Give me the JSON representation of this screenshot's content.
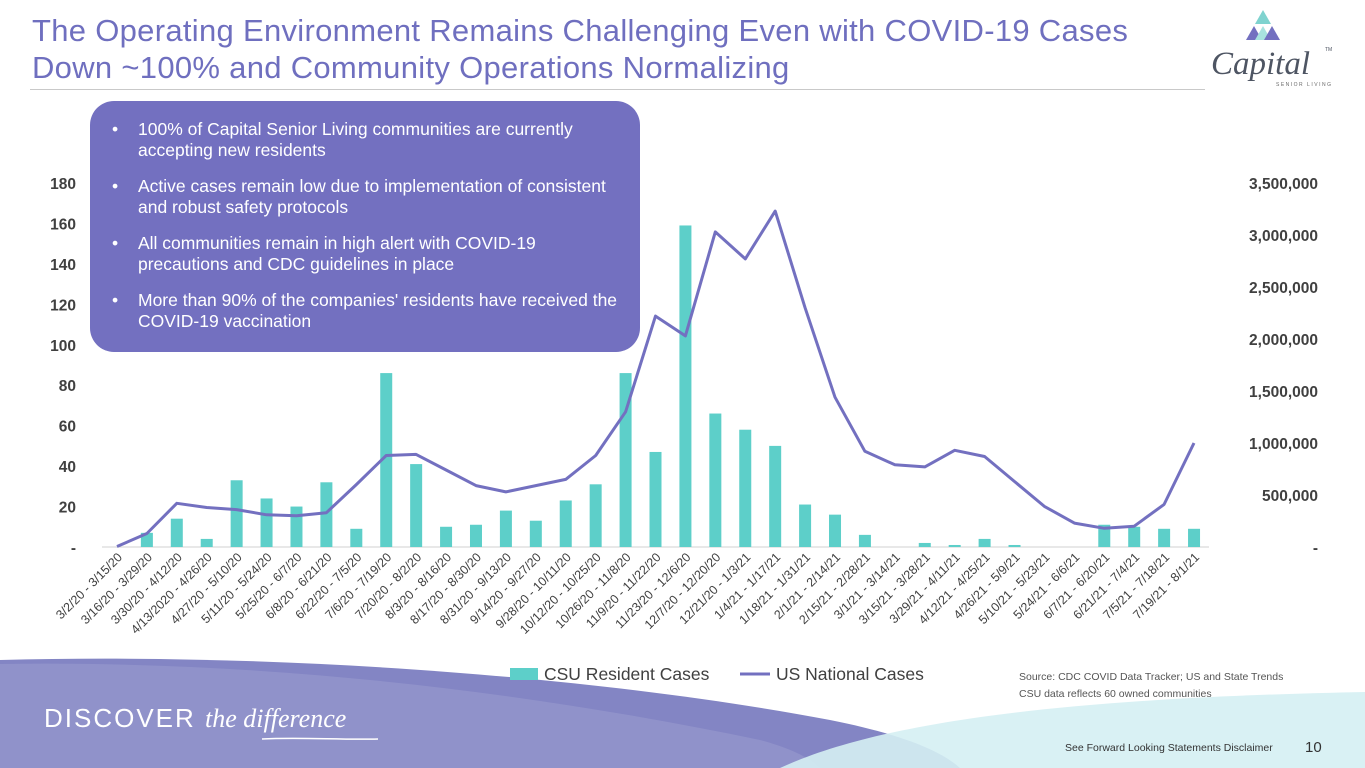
{
  "slide": {
    "title_line1": "The Operating Environment Remains Challenging Even with COVID-19 Cases",
    "title_line2": "Down ~100% and Community Operations Normalizing",
    "logo_text": "Capital",
    "logo_tm": "TM",
    "logo_subtitle": "SENIOR LIVING",
    "bullets": [
      "100% of Capital Senior Living communities are currently accepting new residents",
      "Active cases remain low due to implementation of consistent and robust safety protocols",
      "All communities remain in high alert with COVID-19 precautions and CDC guidelines in place",
      "More than 90% of the companies' residents have received the COVID-19 vaccination"
    ],
    "source_line1": "Source: CDC COVID Data Tracker; US and State Trends",
    "source_line2": "CSU data reflects 60 owned communities",
    "footer_discover": "DISCOVER",
    "footer_tagline": "the difference",
    "disclaimer": "See Forward Looking Statements Disclaimer",
    "page_number": "10"
  },
  "colors": {
    "title": "#6f6fbf",
    "bar": "#5dcfc9",
    "line": "#7370c0",
    "callout": "#7370c0"
  },
  "chart_data": {
    "type": "bar+line",
    "title": "",
    "categories": [
      "3/2/20 - 3/15/20",
      "3/16/20 - 3/29/20",
      "3/30/20 - 4/12/20",
      "4/13/2020 - 4/26/20",
      "4/27/20 - 5/10/20",
      "5/11/20 - 5/24/20",
      "5/25/20 - 6/7/20",
      "6/8/20 - 6/21/20",
      "6/22/20 - 7/5/20",
      "7/6/20 - 7/19/20",
      "7/20/20 - 8/2/20",
      "8/3/20 - 8/16/20",
      "8/17/20 - 8/30/20",
      "8/31/20 - 9/13/20",
      "9/14/20 - 9/27/20",
      "9/28/20 - 10/11/20",
      "10/12/20 - 10/25/20",
      "10/26/20 - 11/8/20",
      "11/9/20 - 11/22/20",
      "11/23/20 - 12/6/20",
      "12/7/20 - 12/20/20",
      "12/21/20 - 1/3/21",
      "1/4/21 - 1/17/21",
      "1/18/21 - 1/31/21",
      "2/1/21 - 2/14/21",
      "2/15/21 - 2/28/21",
      "3/1/21 - 3/14/21",
      "3/15/21 - 3/28/21",
      "3/29/21 - 4/11/21",
      "4/12/21 - 4/25/21",
      "4/26/21 - 5/9/21",
      "5/10/21 - 5/23/21",
      "5/24/21 - 6/6/21",
      "6/7/21 - 6/20/21",
      "6/21/21 - 7/4/21",
      "7/5/21 - 7/18/21",
      "7/19/21 - 8/1/21"
    ],
    "series": [
      {
        "name": "CSU Resident Cases",
        "type": "bar",
        "axis": "left",
        "values": [
          0,
          7,
          14,
          4,
          33,
          24,
          20,
          32,
          9,
          86,
          41,
          10,
          11,
          18,
          13,
          23,
          31,
          86,
          47,
          159,
          66,
          58,
          50,
          21,
          16,
          6,
          0,
          2,
          1,
          4,
          1,
          0,
          0,
          11,
          10,
          9,
          9
        ]
      },
      {
        "name": "US National Cases",
        "type": "line",
        "axis": "right",
        "values": [
          5000,
          130000,
          420000,
          380000,
          360000,
          310000,
          300000,
          330000,
          600000,
          880000,
          890000,
          740000,
          590000,
          530000,
          590000,
          650000,
          880000,
          1300000,
          2220000,
          2030000,
          3030000,
          2770000,
          3230000,
          2300000,
          1440000,
          920000,
          790000,
          770000,
          930000,
          870000,
          630000,
          390000,
          230000,
          180000,
          200000,
          410000,
          1000000
        ]
      }
    ],
    "y_left": {
      "min": 0,
      "max": 180,
      "ticks": [
        0,
        20,
        40,
        60,
        80,
        100,
        120,
        140,
        160,
        180
      ],
      "tick_labels": [
        "-",
        "20",
        "40",
        "60",
        "80",
        "100",
        "120",
        "140",
        "160",
        "180"
      ]
    },
    "y_right": {
      "min": 0,
      "max": 3500000,
      "ticks": [
        0,
        500000,
        1000000,
        1500000,
        2000000,
        2500000,
        3000000,
        3500000
      ],
      "tick_labels": [
        "-",
        "500,000",
        "1,000,000",
        "1,500,000",
        "2,000,000",
        "2,500,000",
        "3,000,000",
        "3,500,000"
      ]
    },
    "legend": [
      "CSU Resident Cases",
      "US National Cases"
    ],
    "legend_position": "bottom",
    "grid": false
  }
}
